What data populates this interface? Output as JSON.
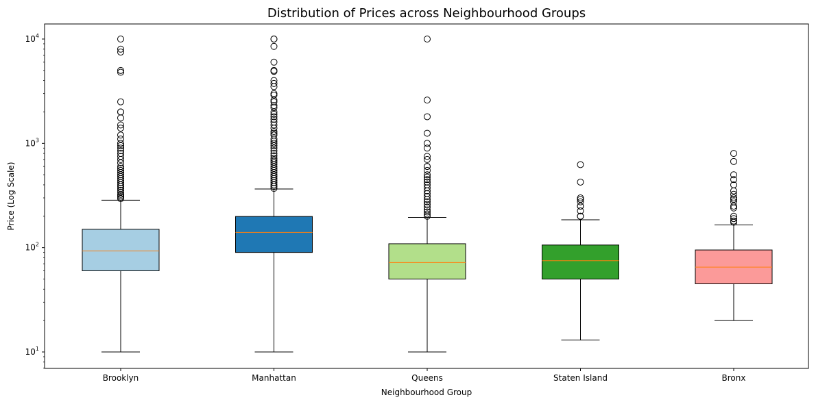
{
  "chart_data": {
    "type": "boxplot",
    "title": "Distribution of Prices across Neighbourhood Groups",
    "xlabel": "Neighbourhood Group",
    "ylabel": "Price (Log Scale)",
    "yscale": "log",
    "ylim": [
      7,
      14000
    ],
    "yticks": [
      {
        "value": 10,
        "base": "10",
        "exp": "1"
      },
      {
        "value": 100,
        "base": "10",
        "exp": "2"
      },
      {
        "value": 1000,
        "base": "10",
        "exp": "3"
      },
      {
        "value": 10000,
        "base": "10",
        "exp": "4"
      }
    ],
    "groups": [
      {
        "name": "Brooklyn",
        "color": "#a6cee3",
        "whisker_low": 10,
        "q1": 60,
        "median": 93,
        "q3": 150,
        "whisker_high": 285,
        "outliers": [
          10000,
          8000,
          7500,
          5000,
          4800,
          2500,
          2000,
          2000,
          1750,
          1500,
          1400,
          1200,
          1100,
          1000,
          950,
          900,
          850,
          800,
          750,
          700,
          650,
          600,
          575,
          550,
          525,
          500,
          480,
          460,
          440,
          420,
          400,
          385,
          370,
          355,
          340,
          325,
          315,
          305,
          295
        ]
      },
      {
        "name": "Manhattan",
        "color": "#1f78b4",
        "whisker_low": 10,
        "q1": 90,
        "median": 140,
        "q3": 199,
        "whisker_high": 365,
        "outliers": [
          10000,
          9999,
          8500,
          6000,
          5000,
          4900,
          4000,
          3750,
          3500,
          3000,
          2900,
          2600,
          2500,
          2300,
          2200,
          2000,
          1900,
          1800,
          1700,
          1600,
          1500,
          1400,
          1300,
          1250,
          1200,
          1100,
          1050,
          1000,
          950,
          900,
          850,
          800,
          760,
          720,
          690,
          660,
          630,
          600,
          575,
          550,
          525,
          500,
          480,
          460,
          440,
          420,
          400,
          385,
          370
        ]
      },
      {
        "name": "Queens",
        "color": "#b2df8a",
        "whisker_low": 10,
        "q1": 50,
        "median": 72,
        "q3": 109,
        "whisker_high": 195,
        "outliers": [
          10000,
          2600,
          1800,
          1250,
          1000,
          900,
          750,
          700,
          600,
          600,
          550,
          500,
          475,
          450,
          425,
          400,
          375,
          350,
          330,
          310,
          290,
          275,
          260,
          245,
          230,
          220,
          210,
          200
        ]
      },
      {
        "name": "Staten Island",
        "color": "#33a02c",
        "whisker_low": 13,
        "q1": 50,
        "median": 75,
        "q3": 106,
        "whisker_high": 185,
        "outliers": [
          625,
          425,
          300,
          290,
          275,
          250,
          250,
          225,
          200,
          200
        ]
      },
      {
        "name": "Bronx",
        "color": "#fb9a99",
        "whisker_low": 20,
        "q1": 45,
        "median": 65,
        "q3": 95,
        "whisker_high": 165,
        "outliers": [
          800,
          670,
          500,
          450,
          400,
          350,
          325,
          300,
          290,
          275,
          250,
          240,
          200,
          190,
          180,
          175
        ]
      }
    ]
  }
}
